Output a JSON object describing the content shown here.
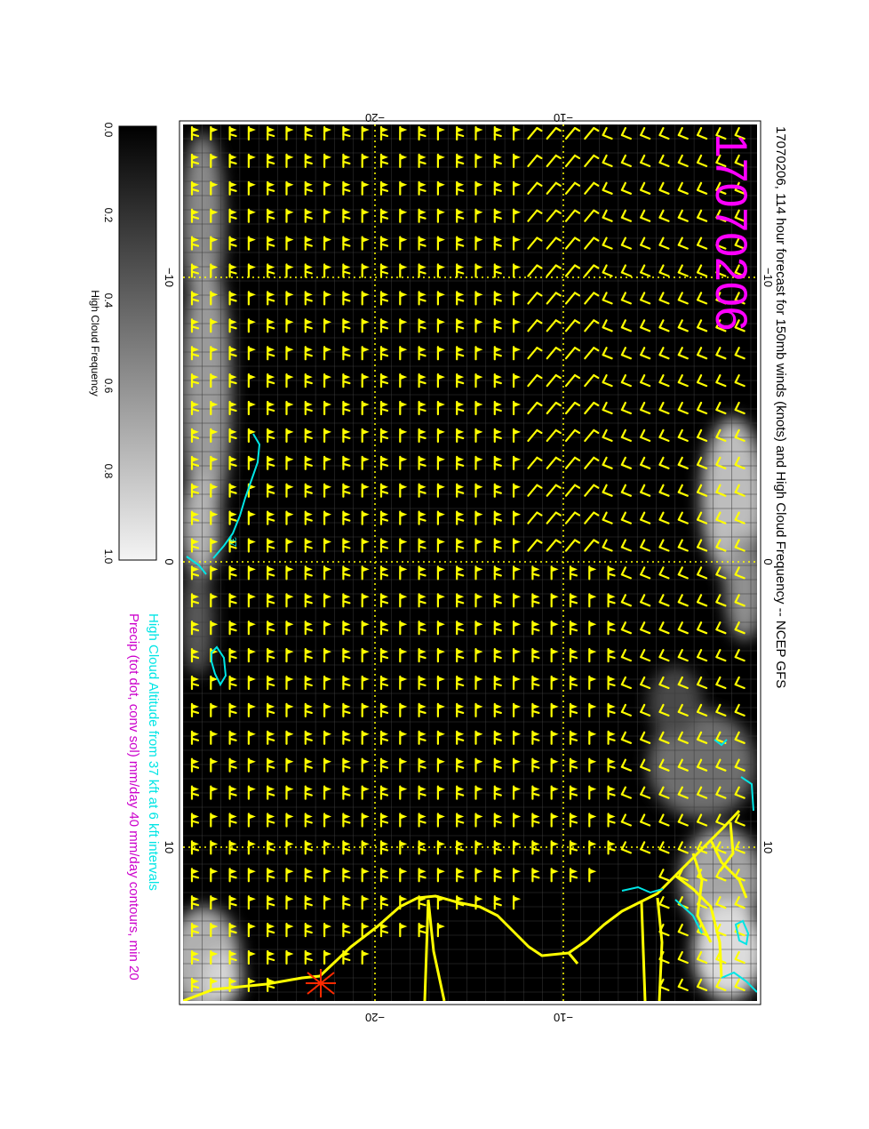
{
  "title": "17070206, 114 hour forecast for 150mb winds (knots) and High Cloud Frequency -- NCEP GFS",
  "date_stamp": "17070206",
  "legend_line1": "High Cloud Altitude from 37 kft at 6 kft intervals",
  "legend_line2": "Precip (tot dot, conv sol) mm/day 40 mm/day contours, min 20",
  "colorbar": {
    "label": "High Cloud Frequency",
    "ticks": [
      "0.0",
      "0.2",
      "0.4",
      "0.6",
      "0.8",
      "1.0"
    ]
  },
  "axes": {
    "top_ticks": [
      "−20",
      "−10"
    ],
    "bottom_ticks": [
      "−20",
      "−10"
    ],
    "left_ticks": [
      "−10",
      "0",
      "10"
    ],
    "right_ticks": [
      "−10",
      "0",
      "10"
    ]
  },
  "contour_label": "37",
  "colors": {
    "background": "#000000",
    "barbs": "#ffff00",
    "coast": "#ffff00",
    "cloud_contour": "#00e5e5",
    "date_stamp": "#ff00ff",
    "legend_line1": "#00e5e5",
    "legend_line2": "#cc00cc"
  }
}
